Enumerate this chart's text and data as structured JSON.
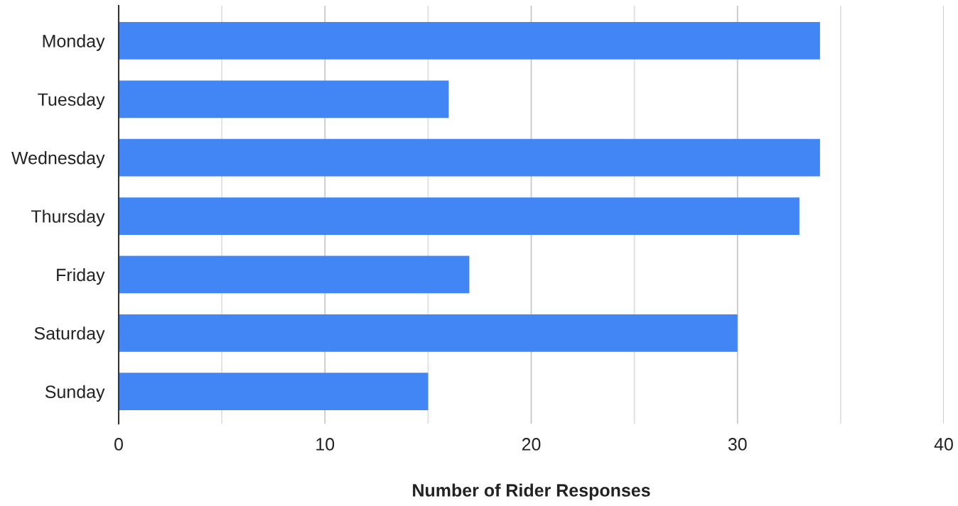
{
  "chart_data": {
    "type": "bar",
    "orientation": "horizontal",
    "xlabel": "Number of Rider Responses",
    "categories": [
      "Monday",
      "Tuesday",
      "Wednesday",
      "Thursday",
      "Friday",
      "Saturday",
      "Sunday"
    ],
    "values": [
      34,
      16,
      34,
      33,
      17,
      30,
      15
    ],
    "color": "#4285f4",
    "xlim": [
      0,
      40
    ],
    "xticks": [
      0,
      {
        "value": 5,
        "label": null
      },
      10,
      {
        "value": 15,
        "label": null
      },
      20,
      {
        "value": 25,
        "label": null
      },
      30,
      {
        "value": 35,
        "label": null
      },
      40
    ],
    "grid": "x"
  }
}
